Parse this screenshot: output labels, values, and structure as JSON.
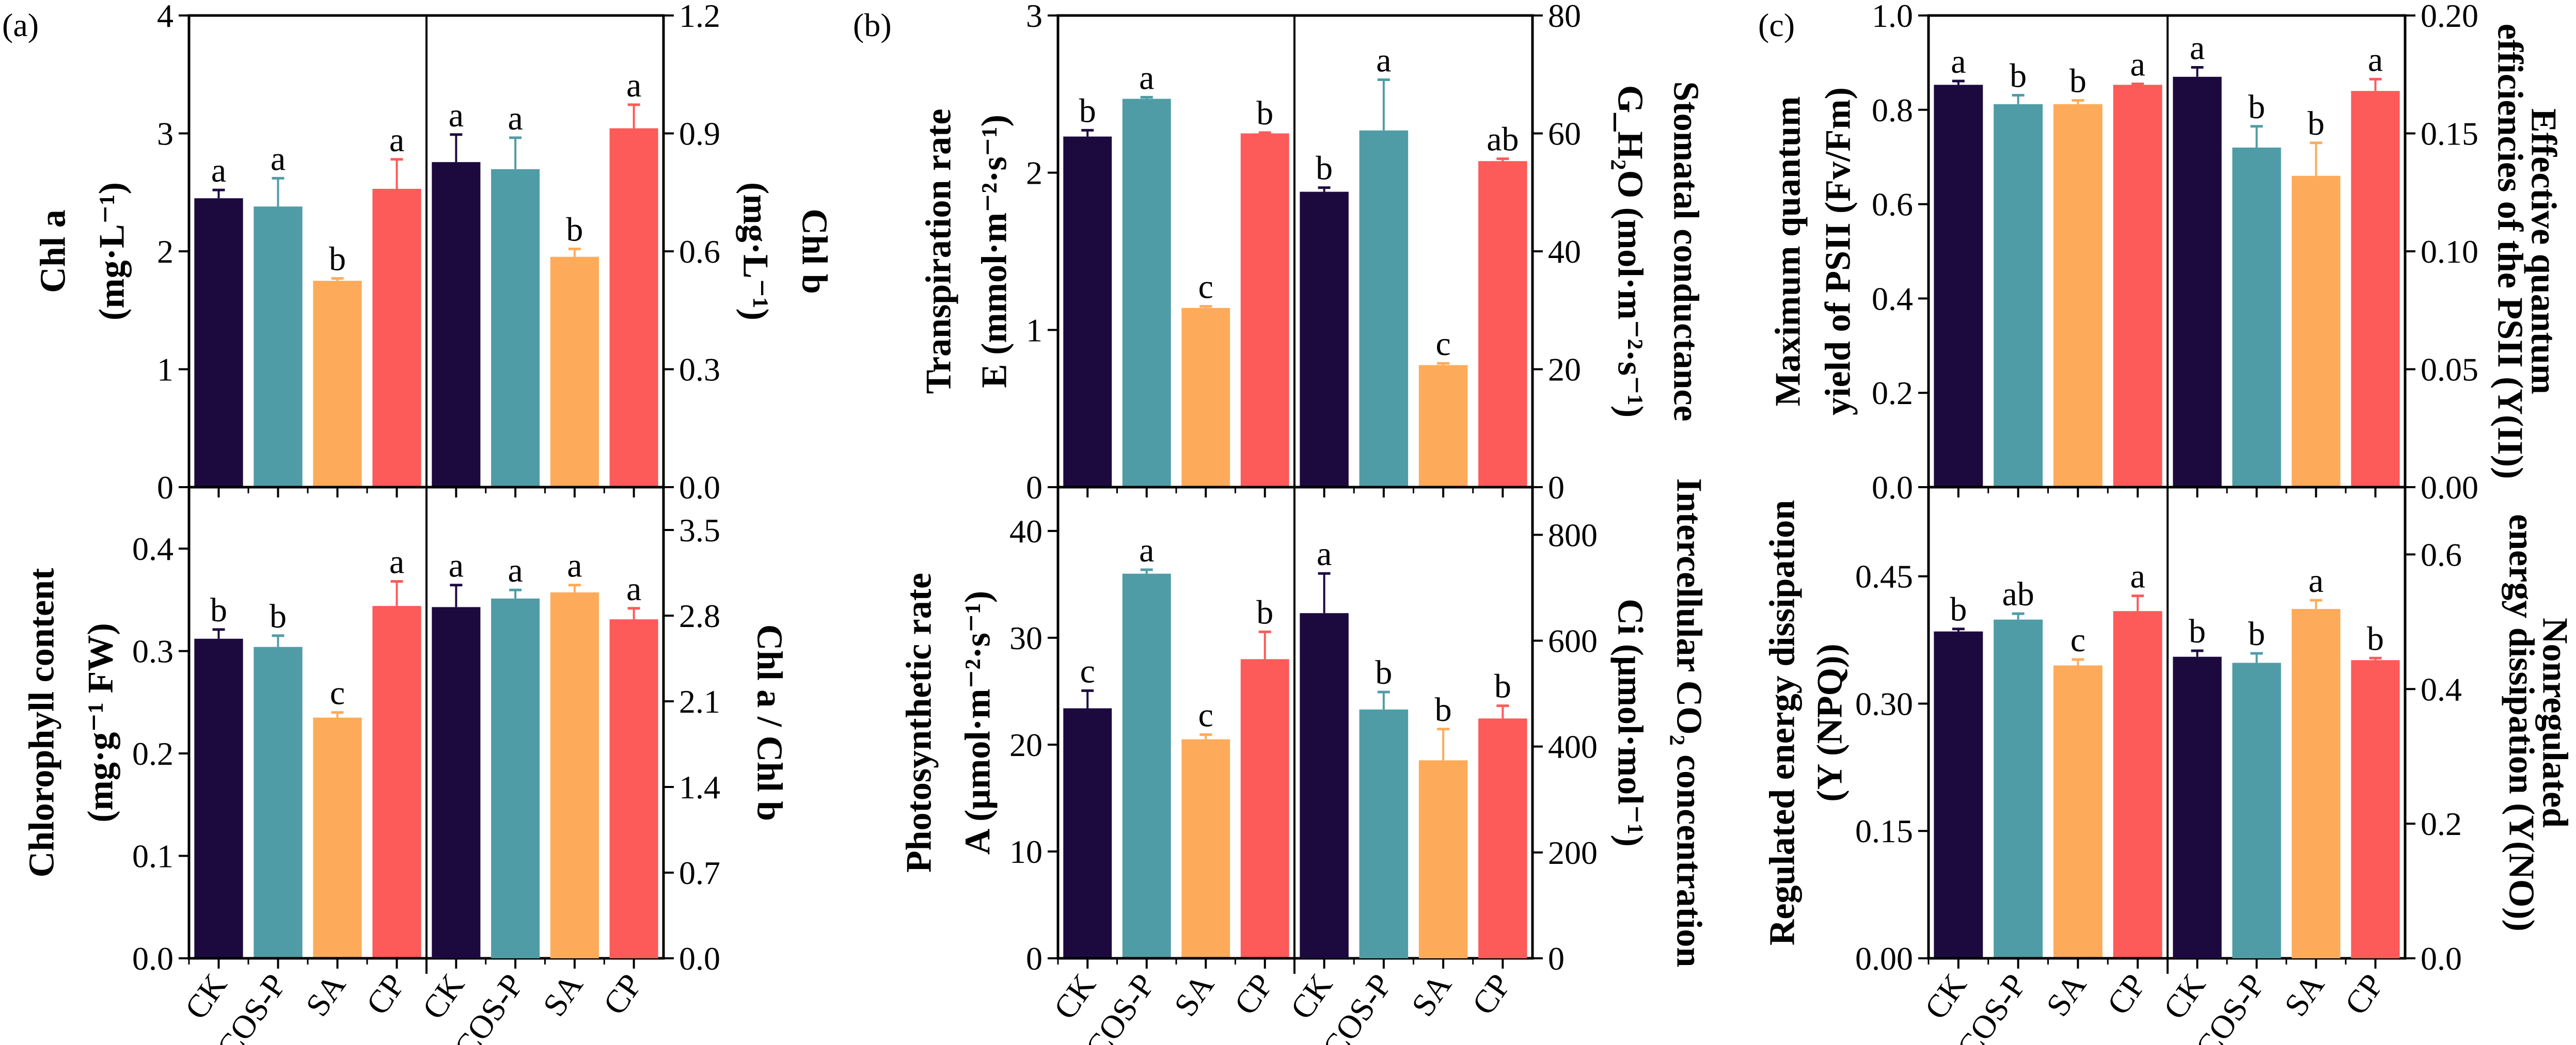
{
  "panel_labels": {
    "a": "(a)",
    "b": "(b)",
    "c": "(c)"
  },
  "colors": {
    "CK": "#1c0a3f",
    "COS-P": "#4f9ca6",
    "SA": "#fdab5a",
    "CP": "#fd5a5a",
    "axis": "#000000"
  },
  "chart_data": [
    {
      "type": "bar",
      "panel": "a",
      "row": "top",
      "side": "left",
      "ylabel": [
        "Chl a",
        "(mg·L⁻¹)"
      ],
      "ylim": [
        0,
        4
      ],
      "ticks": [
        0,
        1,
        2,
        3,
        4
      ],
      "tick_labels": [
        "0",
        "1",
        "2",
        "3",
        "4"
      ],
      "categories": [
        "CK",
        "COS-P",
        "SA",
        "CP"
      ],
      "values": [
        2.45,
        2.38,
        1.75,
        2.53
      ],
      "errors": [
        0.07,
        0.24,
        0.02,
        0.25
      ],
      "letters": [
        "a",
        "a",
        "b",
        "a"
      ]
    },
    {
      "type": "bar",
      "panel": "a",
      "row": "top",
      "side": "right",
      "ylabel": [
        "Chl b",
        "(mg·L⁻¹)"
      ],
      "ylim": [
        0,
        1.2
      ],
      "ticks": [
        0,
        0.3,
        0.6,
        0.9,
        1.2
      ],
      "tick_labels": [
        "0.0",
        "0.3",
        "0.6",
        "0.9",
        "1.2"
      ],
      "categories": [
        "CK",
        "COS-P",
        "SA",
        "CP"
      ],
      "values": [
        0.827,
        0.809,
        0.586,
        0.913
      ],
      "errors": [
        0.07,
        0.08,
        0.02,
        0.06
      ],
      "letters": [
        "a",
        "a",
        "b",
        "a"
      ]
    },
    {
      "type": "bar",
      "panel": "a",
      "row": "bottom",
      "side": "left",
      "ylabel": [
        "Chlorophyll content",
        "(mg·g⁻¹ FW)"
      ],
      "ylim": [
        0,
        0.46
      ],
      "ticks": [
        0,
        0.1,
        0.2,
        0.3,
        0.4
      ],
      "tick_labels": [
        "0.0",
        "0.1",
        "0.2",
        "0.3",
        "0.4"
      ],
      "categories": [
        "CK",
        "COS-P",
        "SA",
        "CP"
      ],
      "values": [
        0.312,
        0.304,
        0.235,
        0.344
      ],
      "errors": [
        0.009,
        0.011,
        0.005,
        0.024
      ],
      "letters": [
        "b",
        "b",
        "c",
        "a"
      ]
    },
    {
      "type": "bar",
      "panel": "a",
      "row": "bottom",
      "side": "right",
      "ylabel": [
        "Chl a / Chl b"
      ],
      "ylim": [
        0,
        3.85
      ],
      "ticks": [
        0,
        0.7,
        1.4,
        2.1,
        2.8,
        3.5
      ],
      "tick_labels": [
        "0.0",
        "0.7",
        "1.4",
        "2.1",
        "2.8",
        "3.5"
      ],
      "categories": [
        "CK",
        "COS-P",
        "SA",
        "CP"
      ],
      "values": [
        2.87,
        2.94,
        2.99,
        2.77
      ],
      "errors": [
        0.18,
        0.07,
        0.06,
        0.09
      ],
      "letters": [
        "a",
        "a",
        "a",
        "a"
      ]
    },
    {
      "type": "bar",
      "panel": "b",
      "row": "top",
      "side": "left",
      "ylabel": [
        "Transpiration rate",
        "E (mmol·m⁻²·s⁻¹)"
      ],
      "ylim": [
        0,
        3
      ],
      "ticks": [
        0,
        1,
        2,
        3
      ],
      "tick_labels": [
        "0",
        "1",
        "2",
        "3"
      ],
      "categories": [
        "CK",
        "COS-P",
        "SA",
        "CP"
      ],
      "values": [
        2.23,
        2.47,
        1.14,
        2.25
      ],
      "errors": [
        0.04,
        0.01,
        0.01,
        0.005
      ],
      "letters": [
        "b",
        "a",
        "c",
        "b"
      ]
    },
    {
      "type": "bar",
      "panel": "b",
      "row": "top",
      "side": "right",
      "ylabel": [
        "Stomatal conductance",
        "G_H₂O (mol·m⁻²·s⁻¹)"
      ],
      "ylim": [
        0,
        80
      ],
      "ticks": [
        0,
        20,
        40,
        60,
        80
      ],
      "tick_labels": [
        "0",
        "20",
        "40",
        "60",
        "80"
      ],
      "categories": [
        "CK",
        "COS-P",
        "SA",
        "CP"
      ],
      "values": [
        50.1,
        60.5,
        20.7,
        55.3
      ],
      "errors": [
        0.7,
        8.6,
        0.3,
        0.4
      ],
      "letters": [
        "b",
        "a",
        "c",
        "ab"
      ]
    },
    {
      "type": "bar",
      "panel": "b",
      "row": "bottom",
      "side": "left",
      "ylabel": [
        "Photosynthetic rate",
        "A (μmol·m⁻²·s⁻¹)"
      ],
      "ylim": [
        0,
        44.1
      ],
      "ticks": [
        0,
        10,
        20,
        30,
        40
      ],
      "tick_labels": [
        "0",
        "10",
        "20",
        "30",
        "40"
      ],
      "categories": [
        "CK",
        "COS-P",
        "SA",
        "CP"
      ],
      "values": [
        23.4,
        36.0,
        20.5,
        28.0
      ],
      "errors": [
        1.65,
        0.37,
        0.44,
        2.56
      ],
      "letters": [
        "c",
        "a",
        "c",
        "b"
      ]
    },
    {
      "type": "bar",
      "panel": "b",
      "row": "bottom",
      "side": "right",
      "ylabel": [
        "Intercellular CO₂ concentration",
        "Ci (μmol·mol⁻¹)"
      ],
      "ylim": [
        0,
        890
      ],
      "ticks": [
        0,
        200,
        400,
        600,
        800
      ],
      "tick_labels": [
        "0",
        "200",
        "400",
        "600",
        "800"
      ],
      "categories": [
        "CK",
        "COS-P",
        "SA",
        "CP"
      ],
      "values": [
        652,
        470,
        374,
        453
      ],
      "errors": [
        75,
        33,
        59,
        24
      ],
      "letters": [
        "a",
        "b",
        "b",
        "b"
      ]
    },
    {
      "type": "bar",
      "panel": "c",
      "row": "top",
      "side": "left",
      "ylabel": [
        "Maximum quantum",
        "yield of PSII (Fv/Fm)"
      ],
      "ylim": [
        0,
        1.0
      ],
      "ticks": [
        0,
        0.2,
        0.4,
        0.6,
        0.8,
        1.0
      ],
      "tick_labels": [
        "0.0",
        "0.2",
        "0.4",
        "0.6",
        "0.8",
        "1.0"
      ],
      "categories": [
        "CK",
        "COS-P",
        "SA",
        "CP"
      ],
      "values": [
        0.853,
        0.812,
        0.812,
        0.853
      ],
      "errors": [
        0.008,
        0.019,
        0.008,
        0.002
      ],
      "letters": [
        "a",
        "b",
        "b",
        "a"
      ]
    },
    {
      "type": "bar",
      "panel": "c",
      "row": "top",
      "side": "right",
      "ylabel": [
        "Effective quantum",
        "efficiencies of the PSII (Y(II))"
      ],
      "ylim": [
        0,
        0.2
      ],
      "ticks": [
        0,
        0.05,
        0.1,
        0.15,
        0.2
      ],
      "tick_labels": [
        "0.00",
        "0.05",
        "0.10",
        "0.15",
        "0.20"
      ],
      "categories": [
        "CK",
        "COS-P",
        "SA",
        "CP"
      ],
      "values": [
        0.174,
        0.144,
        0.132,
        0.168
      ],
      "errors": [
        0.004,
        0.009,
        0.014,
        0.005
      ],
      "letters": [
        "a",
        "b",
        "b",
        "a"
      ]
    },
    {
      "type": "bar",
      "panel": "c",
      "row": "bottom",
      "side": "left",
      "ylabel": [
        "Regulated energy dissipation",
        "(Y (NPQ))"
      ],
      "ylim": [
        0,
        0.555
      ],
      "ticks": [
        0,
        0.15,
        0.3,
        0.45
      ],
      "tick_labels": [
        "0.00",
        "0.15",
        "0.30",
        "0.45"
      ],
      "categories": [
        "CK",
        "COS-P",
        "SA",
        "CP"
      ],
      "values": [
        0.385,
        0.399,
        0.345,
        0.409
      ],
      "errors": [
        0.003,
        0.007,
        0.007,
        0.018
      ],
      "letters": [
        "b",
        "ab",
        "c",
        "a"
      ]
    },
    {
      "type": "bar",
      "panel": "c",
      "row": "bottom",
      "side": "right",
      "ylabel": [
        "Nonregulated",
        "energy dissipation (Y(NO))"
      ],
      "ylim": [
        0,
        0.7
      ],
      "ticks": [
        0,
        0.2,
        0.4,
        0.6
      ],
      "tick_labels": [
        "0.0",
        "0.2",
        "0.4",
        "0.6"
      ],
      "categories": [
        "CK",
        "COS-P",
        "SA",
        "CP"
      ],
      "values": [
        0.448,
        0.439,
        0.519,
        0.443
      ],
      "errors": [
        0.009,
        0.014,
        0.013,
        0.003
      ],
      "letters": [
        "b",
        "b",
        "a",
        "b"
      ]
    }
  ]
}
